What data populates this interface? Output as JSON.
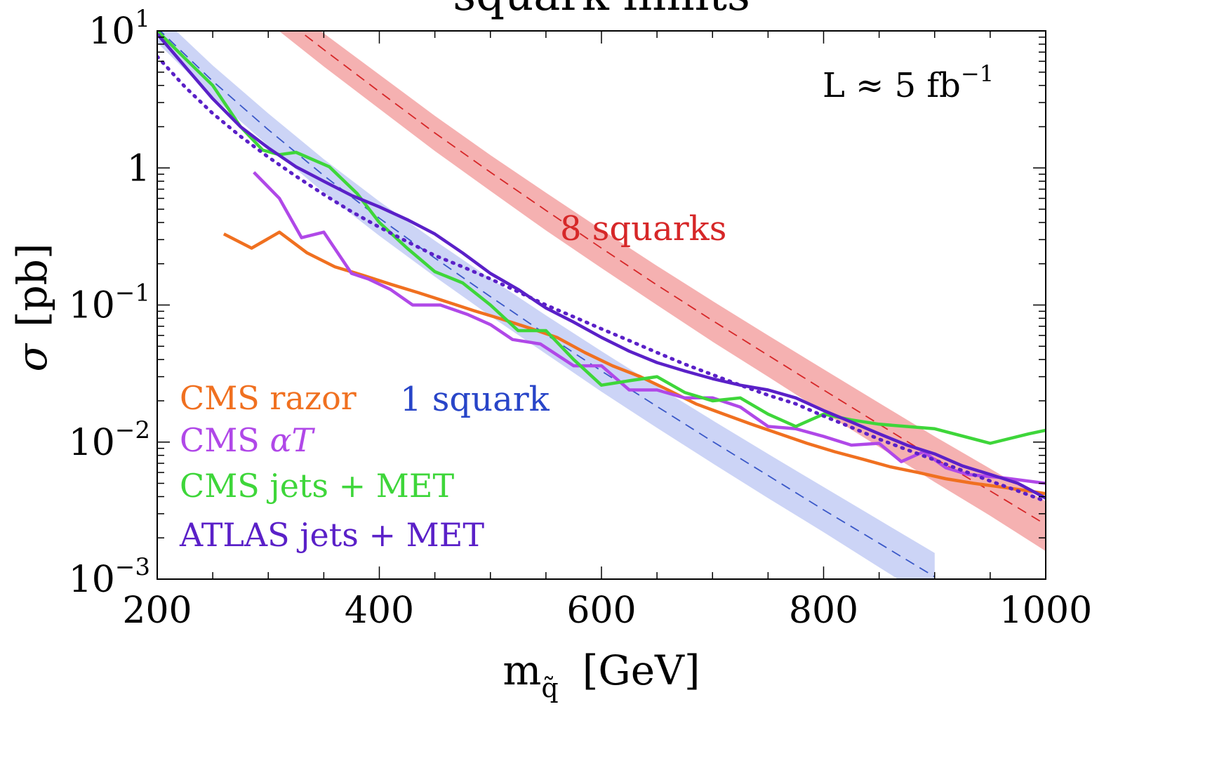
{
  "chart_data": {
    "type": "line",
    "title": "squark limits",
    "xlabel": "m",
    "xlabel_sub": "q̃",
    "xlabel_unit": "[GeV]",
    "ylabel": "σ",
    "ylabel_unit": "[pb]",
    "xlim": [
      200,
      1000
    ],
    "ylim": [
      0.001,
      10
    ],
    "yscale": "log",
    "x_ticks": [
      {
        "value": 200,
        "label": "200"
      },
      {
        "value": 400,
        "label": "400"
      },
      {
        "value": 600,
        "label": "600"
      },
      {
        "value": 800,
        "label": "800"
      },
      {
        "value": 1000,
        "label": "1000"
      }
    ],
    "y_ticks": [
      {
        "value": 10,
        "base": "10",
        "exp": "1"
      },
      {
        "value": 1,
        "base": "1",
        "exp": ""
      },
      {
        "value": 0.1,
        "base": "10",
        "exp": "−1"
      },
      {
        "value": 0.01,
        "base": "10",
        "exp": "−2"
      },
      {
        "value": 0.001,
        "base": "10",
        "exp": "−3"
      }
    ],
    "annotations": {
      "luminosity": {
        "text": "L ≈ 5 fb",
        "sup": "−1"
      },
      "eight_squarks": {
        "text": "8 squarks",
        "color": "#d62728"
      },
      "one_squark": {
        "text": "1 squark",
        "color": "#2845c8"
      }
    },
    "bands": [
      {
        "name": "8 squarks",
        "color": "#f3a3a3",
        "line_color": "#d62728",
        "x": [
          200,
          250,
          300,
          350,
          400,
          450,
          500,
          550,
          600,
          650,
          700,
          750,
          800,
          850,
          900,
          950,
          1000
        ],
        "center": [
          76,
          33,
          15,
          7.3,
          3.6,
          1.8,
          0.93,
          0.49,
          0.26,
          0.14,
          0.077,
          0.043,
          0.024,
          0.0135,
          0.0076,
          0.0044,
          0.0025
        ],
        "lower": [
          58,
          25,
          11.5,
          5.5,
          2.7,
          1.33,
          0.68,
          0.35,
          0.186,
          0.1,
          0.054,
          0.03,
          0.0165,
          0.0092,
          0.0051,
          0.0029,
          0.0016
        ],
        "upper": [
          98,
          43,
          19.7,
          9.6,
          4.8,
          2.4,
          1.24,
          0.66,
          0.355,
          0.193,
          0.107,
          0.06,
          0.034,
          0.0193,
          0.011,
          0.0064,
          0.0037
        ]
      },
      {
        "name": "1 squark",
        "color": "#c3cdf4",
        "line_color": "#3a58c8",
        "x": [
          200,
          250,
          300,
          350,
          400,
          450,
          500,
          550,
          600,
          650,
          700,
          750,
          800,
          850,
          900
        ],
        "center": [
          10.5,
          4.3,
          1.9,
          0.88,
          0.43,
          0.22,
          0.115,
          0.061,
          0.033,
          0.0182,
          0.0101,
          0.0057,
          0.0032,
          0.00183,
          0.00104
        ],
        "lower": [
          8.2,
          3.3,
          1.45,
          0.66,
          0.32,
          0.161,
          0.083,
          0.044,
          0.0233,
          0.0127,
          0.007,
          0.0039,
          0.0022,
          0.00122,
          0.00068
        ],
        "upper": [
          13.5,
          5.6,
          2.5,
          1.16,
          0.57,
          0.295,
          0.156,
          0.084,
          0.046,
          0.0256,
          0.0144,
          0.0082,
          0.0047,
          0.0027,
          0.00155
        ]
      }
    ],
    "series": [
      {
        "name": "CMS razor",
        "color": "#f07020",
        "style": "solid",
        "x": [
          260,
          285,
          310,
          335,
          360,
          385,
          410,
          435,
          460,
          485,
          510,
          535,
          560,
          585,
          610,
          635,
          660,
          685,
          710,
          735,
          760,
          785,
          810,
          835,
          860,
          885,
          910,
          935,
          960,
          985,
          1000
        ],
        "y": [
          0.33,
          0.26,
          0.34,
          0.24,
          0.19,
          0.165,
          0.142,
          0.123,
          0.106,
          0.091,
          0.079,
          0.068,
          0.058,
          0.045,
          0.036,
          0.03,
          0.024,
          0.019,
          0.016,
          0.0135,
          0.0115,
          0.0098,
          0.0085,
          0.0075,
          0.0066,
          0.006,
          0.0054,
          0.005,
          0.0047,
          0.0044,
          0.0042
        ]
      },
      {
        "name": "CMS αT",
        "color": "#b048e8",
        "style": "solid",
        "x": [
          287,
          310,
          330,
          350,
          375,
          390,
          410,
          430,
          455,
          480,
          500,
          520,
          545,
          575,
          600,
          625,
          650,
          675,
          700,
          725,
          750,
          775,
          800,
          825,
          850,
          870,
          890,
          910,
          930,
          960,
          1000
        ],
        "y": [
          0.93,
          0.6,
          0.31,
          0.34,
          0.17,
          0.155,
          0.13,
          0.1,
          0.1,
          0.085,
          0.072,
          0.056,
          0.052,
          0.036,
          0.036,
          0.024,
          0.024,
          0.021,
          0.021,
          0.018,
          0.013,
          0.0125,
          0.011,
          0.0095,
          0.0098,
          0.0072,
          0.0085,
          0.0065,
          0.0058,
          0.0055,
          0.005
        ]
      },
      {
        "name": "CMS jets + MET",
        "color": "#3ed63a",
        "style": "solid",
        "x": [
          200,
          225,
          250,
          275,
          295,
          310,
          325,
          355,
          380,
          400,
          425,
          450,
          475,
          500,
          525,
          550,
          575,
          600,
          625,
          650,
          675,
          700,
          725,
          750,
          775,
          800,
          825,
          850,
          900,
          950,
          985,
          1000
        ],
        "y": [
          10,
          6.3,
          4.0,
          2.0,
          1.35,
          1.25,
          1.3,
          1.02,
          0.65,
          0.4,
          0.26,
          0.175,
          0.145,
          0.1,
          0.065,
          0.065,
          0.04,
          0.026,
          0.028,
          0.03,
          0.023,
          0.02,
          0.021,
          0.016,
          0.013,
          0.016,
          0.0145,
          0.0135,
          0.0125,
          0.0098,
          0.0115,
          0.0122
        ]
      },
      {
        "name": "ATLAS jets + MET",
        "color": "#5a20c8",
        "style": "solid",
        "x": [
          200,
          225,
          250,
          275,
          300,
          325,
          350,
          375,
          400,
          425,
          450,
          475,
          500,
          525,
          550,
          575,
          600,
          625,
          650,
          675,
          700,
          725,
          750,
          775,
          800,
          825,
          850,
          875,
          900,
          925,
          950,
          975,
          1000
        ],
        "y": [
          9.5,
          5.5,
          3.2,
          2.0,
          1.4,
          1.02,
          0.8,
          0.63,
          0.52,
          0.42,
          0.33,
          0.24,
          0.17,
          0.13,
          0.095,
          0.075,
          0.058,
          0.046,
          0.038,
          0.033,
          0.029,
          0.026,
          0.024,
          0.021,
          0.017,
          0.014,
          0.0115,
          0.0095,
          0.0082,
          0.0067,
          0.0058,
          0.005,
          0.0039
        ]
      },
      {
        "name": "ATLAS jets + MET (dotted)",
        "color": "#5a20c8",
        "style": "dotted",
        "x": [
          200,
          225,
          250,
          275,
          300,
          325,
          350,
          375,
          400,
          425,
          450,
          475,
          500,
          525,
          550,
          575,
          600,
          625,
          650,
          675,
          700,
          725,
          750,
          775,
          800,
          825,
          850,
          875,
          900,
          925,
          950,
          975,
          1000
        ],
        "y": [
          6.5,
          3.9,
          2.5,
          1.7,
          1.2,
          0.87,
          0.64,
          0.48,
          0.37,
          0.29,
          0.23,
          0.19,
          0.155,
          0.125,
          0.1,
          0.082,
          0.067,
          0.055,
          0.045,
          0.037,
          0.031,
          0.026,
          0.022,
          0.019,
          0.0155,
          0.0128,
          0.0105,
          0.0088,
          0.0074,
          0.0062,
          0.0052,
          0.0044,
          0.0037
        ]
      }
    ],
    "legend": {
      "placement": "bottom-left",
      "entries": [
        {
          "label": "CMS razor",
          "color": "#f07020",
          "italic_part": ""
        },
        {
          "label": "CMS ",
          "color": "#b048e8",
          "italic_part": "αT"
        },
        {
          "label": "CMS jets + MET",
          "color": "#3ed63a",
          "italic_part": ""
        },
        {
          "label": "ATLAS jets + MET",
          "color": "#5a20c8",
          "italic_part": ""
        }
      ]
    }
  }
}
